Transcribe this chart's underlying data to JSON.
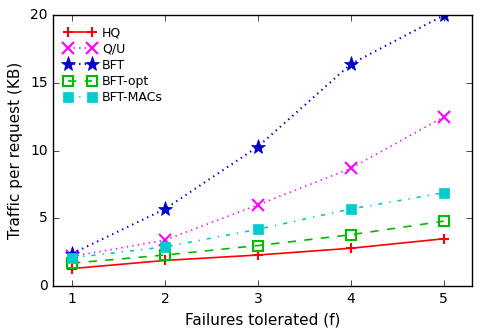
{
  "x": [
    1,
    2,
    3,
    4,
    5
  ],
  "HQ": [
    1.3,
    1.9,
    2.3,
    2.8,
    3.5
  ],
  "QU": [
    2.2,
    3.4,
    6.0,
    8.7,
    12.5
  ],
  "BFT": [
    2.4,
    5.7,
    10.3,
    16.4,
    20.0
  ],
  "BFT_opt": [
    1.7,
    2.3,
    3.0,
    3.8,
    4.8
  ],
  "BFT_MACs": [
    2.1,
    2.9,
    4.2,
    5.7,
    6.9
  ],
  "HQ_color": "#ff0000",
  "QU_color": "#ff00ff",
  "BFT_color": "#0000cc",
  "BFT_opt_color": "#00bb00",
  "BFT_MACs_color": "#00cccc",
  "xlabel": "Failures tolerated (f)",
  "ylabel": "Traffic per request (KB)",
  "xlim": [
    0.8,
    5.3
  ],
  "ylim": [
    0,
    20
  ],
  "yticks": [
    0,
    5,
    10,
    15,
    20
  ],
  "xticks": [
    1,
    2,
    3,
    4,
    5
  ]
}
